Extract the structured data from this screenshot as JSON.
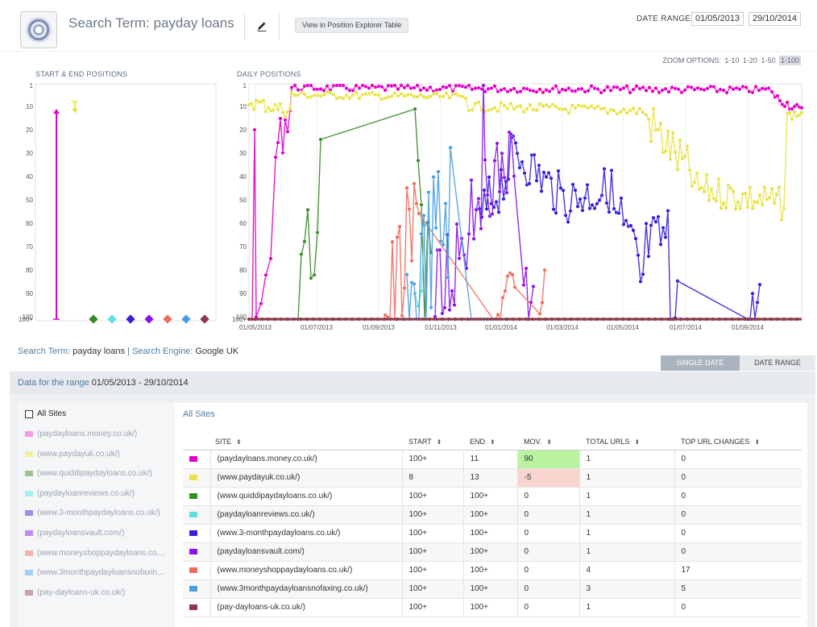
{
  "header": {
    "title": "Search Term: payday loans",
    "view_button": "View in Position Explorer Table",
    "date_range_label": "DATE RANGE:",
    "date_from": "01/05/2013",
    "date_to": "29/10/2014"
  },
  "zoom": {
    "label": "ZOOM OPTIONS:",
    "options": [
      "1-10",
      "1-20",
      "1-50",
      "1-100"
    ],
    "active": "1-100"
  },
  "charts": {
    "start_end_label": "START & END POSITIONS",
    "daily_label": "DAILY POSITIONS"
  },
  "chart_data": {
    "type": "line",
    "x_labels": [
      "01/05/2013",
      "01/07/2013",
      "01/09/2013",
      "01/11/2013",
      "01/01/2014",
      "01/03/2014",
      "01/05/2014",
      "01/07/2014",
      "01/09/2014"
    ],
    "y_labels": [
      "1",
      "10",
      "20",
      "30",
      "40",
      "50",
      "60",
      "70",
      "80",
      "90",
      "100",
      "100+"
    ],
    "ylim": [
      1,
      101
    ],
    "series": [
      {
        "name": "(paydayloans.money.co.uk/)",
        "color": "#e400c8",
        "start": 101,
        "end": 11
      },
      {
        "name": "(www.paydayuk.co.uk/)",
        "color": "#e8e34a",
        "start": 8,
        "end": 13
      },
      {
        "name": "(www.quiddipaydayloans.co.uk/)",
        "color": "#3a8a2a",
        "start": 101,
        "end": 101
      },
      {
        "name": "(paydayloanreviews.co.uk/)",
        "color": "#5ce0e0",
        "start": 101,
        "end": 101
      },
      {
        "name": "(www.3-monthpaydayloans.co.uk/)",
        "color": "#3520d6",
        "start": 101,
        "end": 101
      },
      {
        "name": "(paydayloansvault.com/)",
        "color": "#8a15e8",
        "start": 101,
        "end": 101
      },
      {
        "name": "(www.moneyshoppaydayloans.co.uk/)",
        "color": "#f06b5e",
        "start": 101,
        "end": 101
      },
      {
        "name": "(www.3monthpaydayloansnofaxing.co.uk/)",
        "color": "#4a9ee0",
        "start": 101,
        "end": 101
      },
      {
        "name": "(pay-dayloans-uk.co.uk/)",
        "color": "#8c3a4a",
        "start": 101,
        "end": 101
      }
    ]
  },
  "meta": {
    "term_label": "Search Term:",
    "term": "payday loans",
    "sep": "|",
    "engine_label": "Search Engine:",
    "engine": "Google UK"
  },
  "toggle": {
    "single": "SINGLE DATE",
    "range": "DATE RANGE"
  },
  "range_bar": {
    "label": "Data for the range",
    "value": "01/05/2013 - 29/10/2014"
  },
  "sidebar": {
    "all_sites": "All Sites",
    "items": [
      {
        "label": "(paydayloans.money.co.uk/)",
        "color": "#f29ae8"
      },
      {
        "label": "(www.paydayuk.co.uk/)",
        "color": "#f2ef9c"
      },
      {
        "label": "(www.quiddipaydayloans.co.uk/)",
        "color": "#9cc492"
      },
      {
        "label": "(paydayloanreviews.co.uk/)",
        "color": "#a9eeee"
      },
      {
        "label": "(www.3-monthpaydayloans.co.uk/)",
        "color": "#9a8fe6"
      },
      {
        "label": "(paydayloansvault.com/)",
        "color": "#c08cf0"
      },
      {
        "label": "(www.moneyshoppaydayloans.co....",
        "color": "#f5b3ad"
      },
      {
        "label": "(www.3monthpaydayloansnofaxin...",
        "color": "#a5cff0"
      },
      {
        "label": "(pay-dayloans-uk.co.uk/)",
        "color": "#c9a0a8"
      }
    ]
  },
  "table": {
    "heading": "All Sites",
    "columns": [
      "SITE",
      "START",
      "END",
      "MOV.",
      "TOTAL URLS",
      "TOP URL CHANGES"
    ],
    "rows": [
      {
        "color": "#e400c8",
        "site": "(paydayloans.money.co.uk/)",
        "start": "100+",
        "end": "11",
        "mov": "90",
        "urls": "1",
        "changes": "0",
        "mov_state": "pos"
      },
      {
        "color": "#e8e34a",
        "site": "(www.paydayuk.co.uk/)",
        "start": "8",
        "end": "13",
        "mov": "-5",
        "urls": "1",
        "changes": "0",
        "mov_state": "neg"
      },
      {
        "color": "#3a8a2a",
        "site": "(www.quiddipaydayloans.co.uk/)",
        "start": "100+",
        "end": "100+",
        "mov": "0",
        "urls": "1",
        "changes": "0",
        "mov_state": ""
      },
      {
        "color": "#5ce0e0",
        "site": "(paydayloanreviews.co.uk/)",
        "start": "100+",
        "end": "100+",
        "mov": "0",
        "urls": "1",
        "changes": "0",
        "mov_state": ""
      },
      {
        "color": "#3520d6",
        "site": "(www.3-monthpaydayloans.co.uk/)",
        "start": "100+",
        "end": "100+",
        "mov": "0",
        "urls": "1",
        "changes": "0",
        "mov_state": ""
      },
      {
        "color": "#8a15e8",
        "site": "(paydayloansvault.com/)",
        "start": "100+",
        "end": "100+",
        "mov": "0",
        "urls": "1",
        "changes": "0",
        "mov_state": ""
      },
      {
        "color": "#f06b5e",
        "site": "(www.moneyshoppaydayloans.co.uk/)",
        "start": "100+",
        "end": "100+",
        "mov": "0",
        "urls": "4",
        "changes": "17",
        "mov_state": ""
      },
      {
        "color": "#4a9ee0",
        "site": "(www.3monthpaydayloansnofaxing.co.uk/)",
        "start": "100+",
        "end": "100+",
        "mov": "0",
        "urls": "3",
        "changes": "5",
        "mov_state": ""
      },
      {
        "color": "#8c3a4a",
        "site": "(pay-dayloans-uk.co.uk/)",
        "start": "100+",
        "end": "100+",
        "mov": "0",
        "urls": "1",
        "changes": "0",
        "mov_state": ""
      }
    ]
  }
}
